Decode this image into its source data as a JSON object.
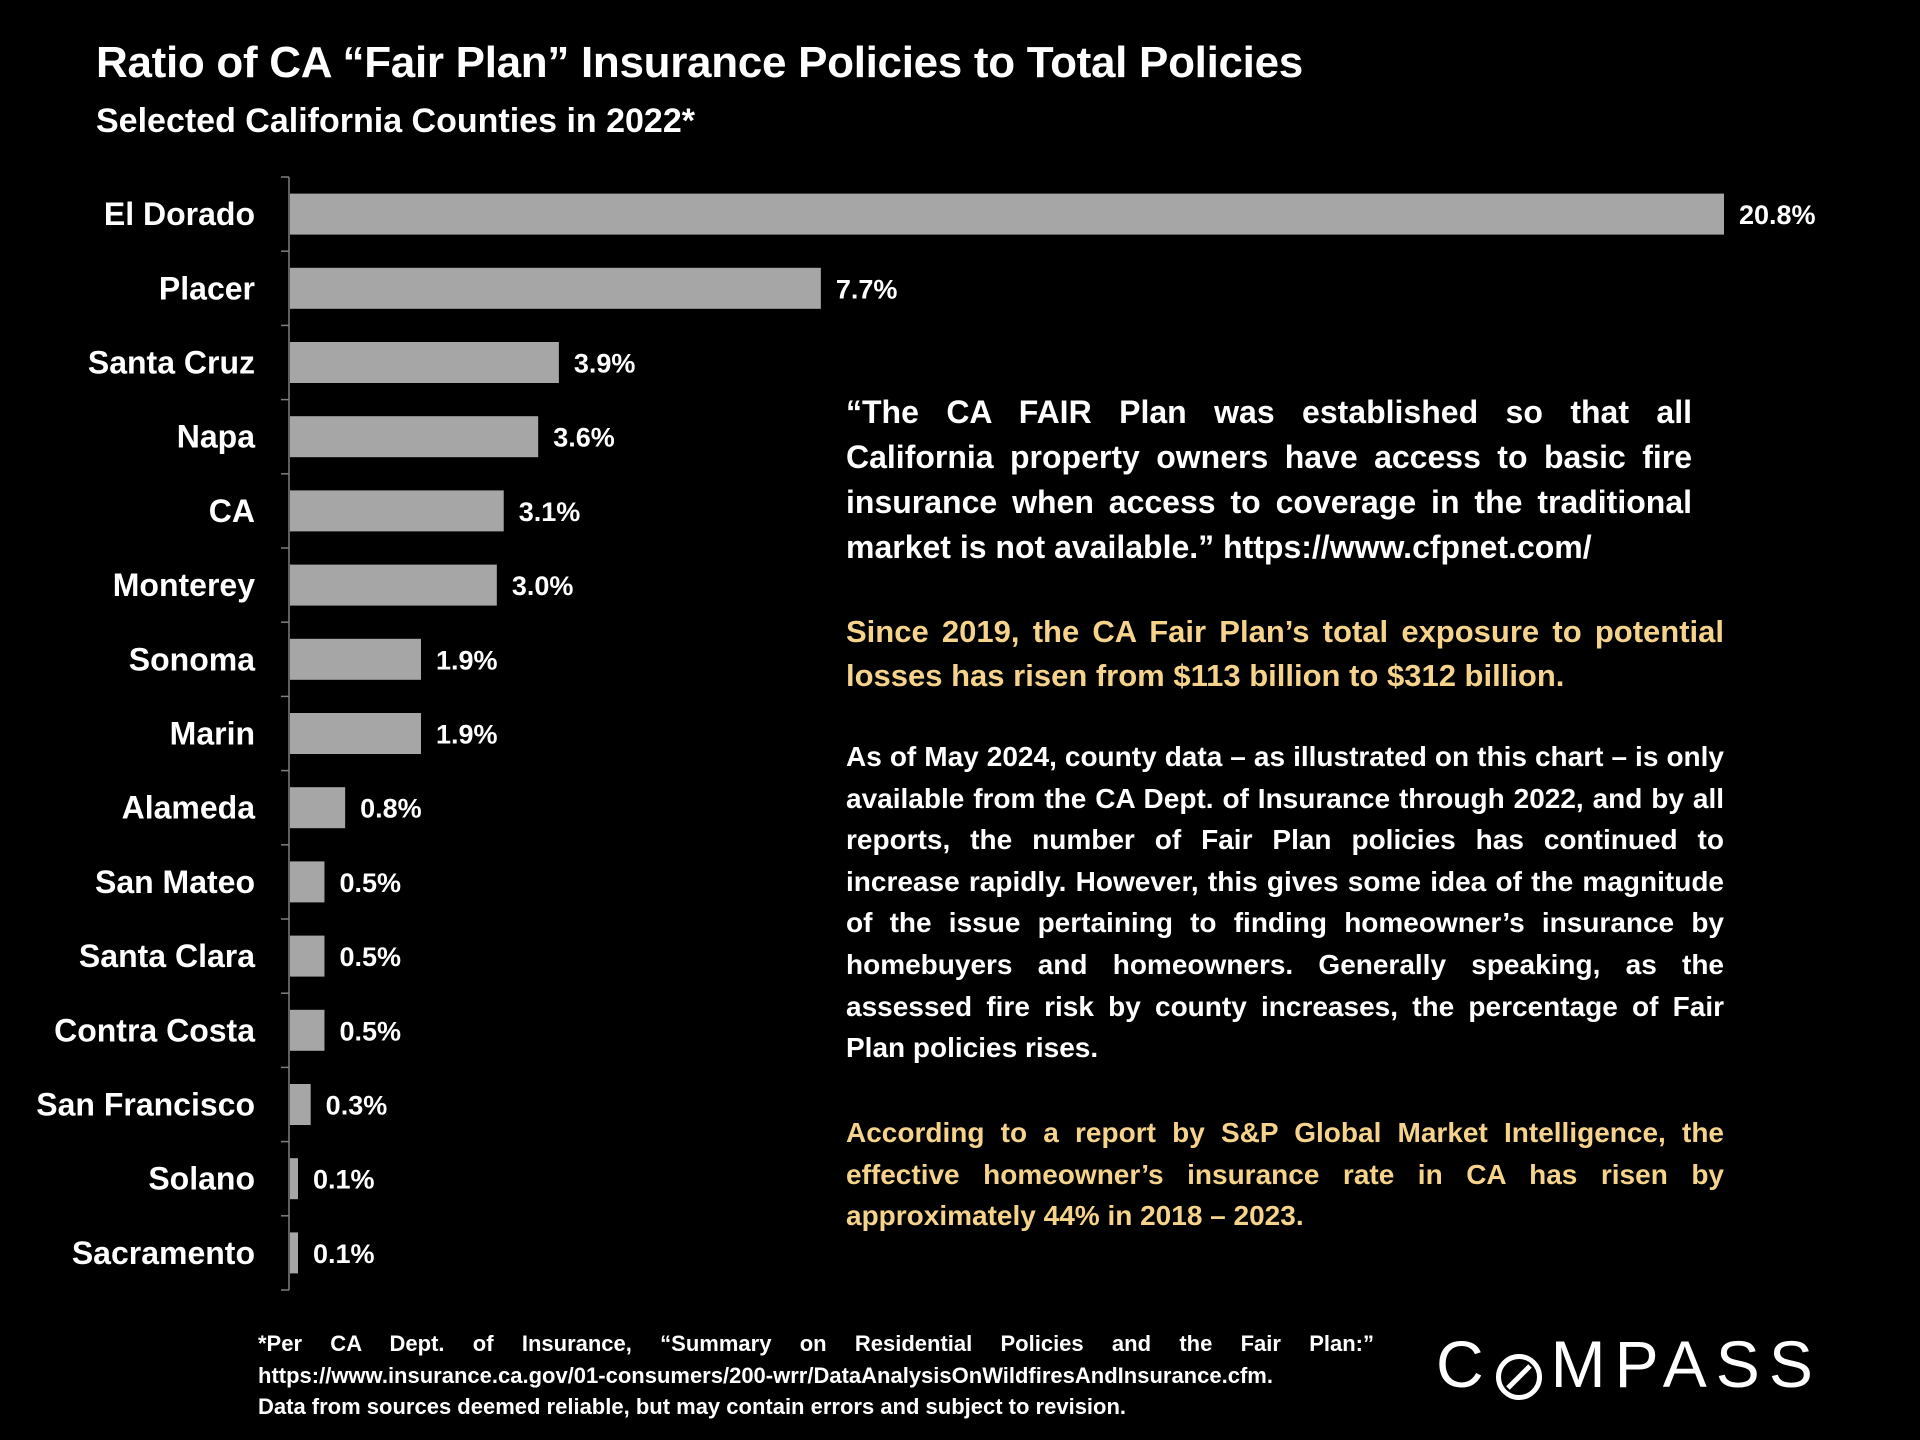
{
  "chart_data": {
    "type": "bar",
    "orientation": "horizontal",
    "title": "Ratio of CA “Fair Plan” Insurance Policies to Total Policies",
    "subtitle": "Selected California Counties in 2022*",
    "categories": [
      "El Dorado",
      "Placer",
      "Santa Cruz",
      "Napa",
      "CA",
      "Monterey",
      "Sonoma",
      "Marin",
      "Alameda",
      "San Mateo",
      "Santa Clara",
      "Contra Costa",
      "San Francisco",
      "Solano",
      "Sacramento"
    ],
    "values": [
      20.8,
      7.7,
      3.9,
      3.6,
      3.1,
      3.0,
      1.9,
      1.9,
      0.8,
      0.5,
      0.5,
      0.5,
      0.3,
      0.1,
      0.1
    ],
    "value_labels": [
      "20.8%",
      "7.7%",
      "3.9%",
      "3.6%",
      "3.1%",
      "3.0%",
      "1.9%",
      "1.9%",
      "0.8%",
      "0.5%",
      "0.5%",
      "0.5%",
      "0.3%",
      "0.1%",
      "0.1%"
    ],
    "unit": "%",
    "xlim": [
      0,
      20.8
    ],
    "bar_color": "#a6a6a6",
    "xlabel": "",
    "ylabel": "",
    "grid": false
  },
  "annotations": {
    "quote": "“The CA FAIR Plan was established so that all California property owners have access to basic fire insurance when access to coverage in the traditional market is not available.” https://www.cfpnet.com/",
    "exposure": "Since 2019, the CA Fair Plan’s total exposure to potential losses has risen from $113 billion to $312 billion.",
    "county_data": "As of May 2024, county data – as illustrated on this chart – is only available from the CA Dept. of Insurance through 2022, and by all reports, the number of Fair Plan policies has continued to increase rapidly. However, this gives some idea of the magnitude of the issue pertaining to finding homeowner’s insurance by homebuyers and homeowners. Generally speaking, as the assessed fire risk by county increases, the percentage of Fair Plan policies rises.",
    "rate_increase": "According to a report by S&P Global Market Intelligence, the effective homeowner’s insurance rate in CA has risen by approximately 44% in 2018 – 2023."
  },
  "footnote": {
    "line1": "*Per CA Dept. of Insurance, “Summary on Residential Policies and the Fair Plan:”",
    "line2": "https://www.insurance.ca.gov/01-consumers/200-wrr/DataAnalysisOnWildfiresAndInsurance.cfm.",
    "line3": "Data from sources deemed reliable, but may contain errors and subject to revision."
  },
  "logo": {
    "pre": "C",
    "post": "MPASS",
    "full": "COMPASS"
  },
  "colors": {
    "background": "#000000",
    "text": "#ffffff",
    "highlight": "#f6d38a",
    "bar": "#a6a6a6",
    "axis": "#7f7f7f"
  }
}
